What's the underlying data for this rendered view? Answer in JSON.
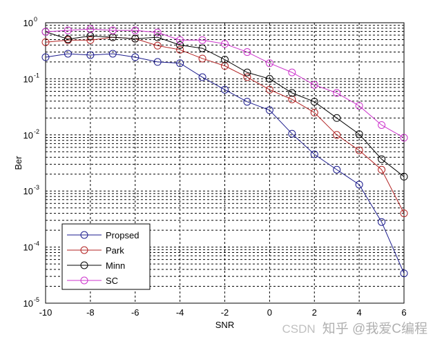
{
  "chart_data": {
    "type": "line",
    "title": "",
    "xlabel": "SNR",
    "ylabel": "Ber",
    "xlim": [
      -10,
      6
    ],
    "ylim": [
      1e-05,
      1
    ],
    "yscale": "log",
    "grid": true,
    "x_ticks": [
      "-10",
      "-8",
      "-6",
      "-4",
      "-2",
      "0",
      "2",
      "4",
      "6"
    ],
    "y_ticks": [
      {
        "base": "10",
        "exp": "0"
      },
      {
        "base": "10",
        "exp": "-1"
      },
      {
        "base": "10",
        "exp": "-2"
      },
      {
        "base": "10",
        "exp": "-3"
      },
      {
        "base": "10",
        "exp": "-4"
      },
      {
        "base": "10",
        "exp": "-5"
      }
    ],
    "legend_position": "bottom-left",
    "x": [
      -10,
      -9,
      -8,
      -7,
      -6,
      -5,
      -4,
      -3,
      -2,
      -1,
      0,
      1,
      2,
      3,
      4,
      5,
      6
    ],
    "series": [
      {
        "name": "Propsed",
        "color": "#1a1a8c",
        "values": [
          0.243,
          0.28,
          0.265,
          0.28,
          0.243,
          0.2,
          0.19,
          0.107,
          0.064,
          0.039,
          0.0276,
          0.0105,
          0.0045,
          0.0024,
          0.0013,
          0.00028,
          3.4e-05
        ]
      },
      {
        "name": "Park",
        "color": "#b22222",
        "values": [
          0.45,
          0.49,
          0.49,
          0.55,
          0.52,
          0.39,
          0.33,
          0.23,
          0.17,
          0.107,
          0.064,
          0.043,
          0.025,
          0.01,
          0.0053,
          0.0024,
          0.0004
        ]
      },
      {
        "name": "Minn",
        "color": "#000000",
        "values": [
          0.69,
          0.51,
          0.58,
          0.55,
          0.52,
          0.55,
          0.4,
          0.35,
          0.22,
          0.13,
          0.1,
          0.056,
          0.039,
          0.02,
          0.0103,
          0.0037,
          0.0018
        ]
      },
      {
        "name": "SC",
        "color": "#cc33cc",
        "values": [
          0.69,
          0.73,
          0.77,
          0.73,
          0.73,
          0.67,
          0.49,
          0.49,
          0.42,
          0.3,
          0.19,
          0.13,
          0.078,
          0.056,
          0.033,
          0.015,
          0.0089
        ]
      }
    ]
  },
  "watermark": {
    "primary": "知乎 @我爱C编程",
    "secondary": "CSDN"
  }
}
